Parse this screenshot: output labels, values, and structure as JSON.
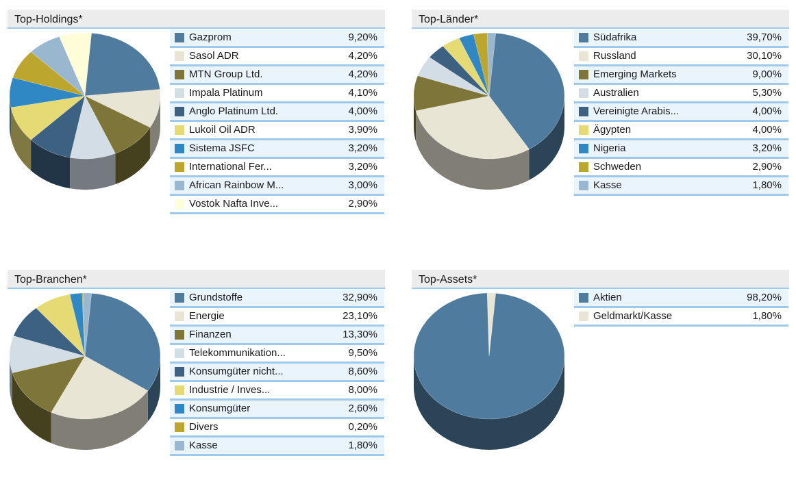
{
  "palette": [
    "#4f7b9f",
    "#e8e5d4",
    "#7e7638",
    "#d3dde6",
    "#3d6180",
    "#e6da74",
    "#2f87c4",
    "#bda62d",
    "#9ab7d0",
    "#fffed8"
  ],
  "chart_data": [
    {
      "type": "pie",
      "title": "Top-Holdings*",
      "categories": [
        "Gazprom",
        "Sasol ADR",
        "MTN Group Ltd.",
        "Impala Platinum",
        "Anglo Platinum Ltd.",
        "Lukoil Oil ADR",
        "Sistema JSFC",
        "International Fer...",
        "African Rainbow M...",
        "Vostok Nafta Inve..."
      ],
      "values": [
        9.2,
        4.2,
        4.2,
        4.1,
        4.0,
        3.9,
        3.2,
        3.2,
        3.0,
        2.9
      ],
      "labels": [
        "9,20%",
        "4,20%",
        "4,20%",
        "4,10%",
        "4,00%",
        "3,90%",
        "3,20%",
        "3,20%",
        "3,00%",
        "2,90%"
      ]
    },
    {
      "type": "pie",
      "title": "Top-Länder*",
      "categories": [
        "Südafrika",
        "Russland",
        "Emerging Markets",
        "Australien",
        "Vereinigte Arabis...",
        "Ägypten",
        "Nigeria",
        "Schweden",
        "Kasse"
      ],
      "values": [
        39.7,
        30.1,
        9.0,
        5.3,
        4.0,
        4.0,
        3.2,
        2.9,
        1.8
      ],
      "labels": [
        "39,70%",
        "30,10%",
        "9,00%",
        "5,30%",
        "4,00%",
        "4,00%",
        "3,20%",
        "2,90%",
        "1,80%"
      ]
    },
    {
      "type": "pie",
      "title": "Top-Branchen*",
      "categories": [
        "Grundstoffe",
        "Energie",
        "Finanzen",
        "Telekommunikation...",
        "Konsumgüter nicht...",
        "Industrie / Inves...",
        "Konsumgüter",
        "Divers",
        "Kasse"
      ],
      "values": [
        32.9,
        23.1,
        13.3,
        9.5,
        8.6,
        8.0,
        2.6,
        0.2,
        1.8
      ],
      "labels": [
        "32,90%",
        "23,10%",
        "13,30%",
        "9,50%",
        "8,60%",
        "8,00%",
        "2,60%",
        "0,20%",
        "1,80%"
      ]
    },
    {
      "type": "pie",
      "title": "Top-Assets*",
      "categories": [
        "Aktien",
        "Geldmarkt/Kasse"
      ],
      "values": [
        98.2,
        1.8
      ],
      "labels": [
        "98,20%",
        "1,80%"
      ]
    }
  ]
}
